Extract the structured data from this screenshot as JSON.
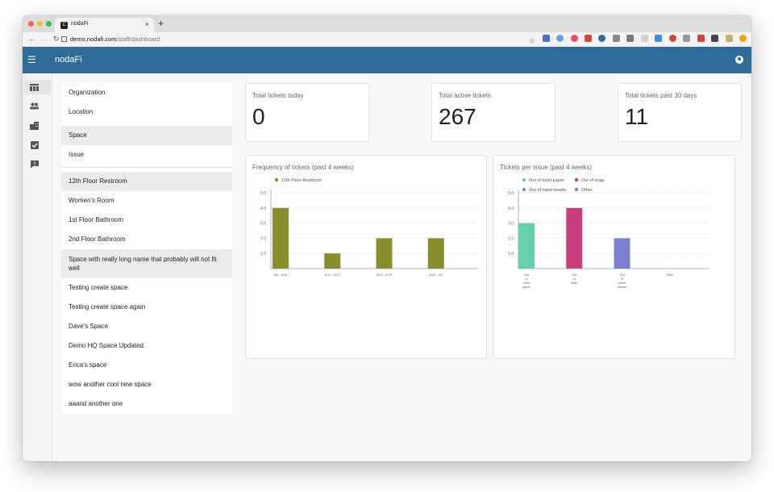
{
  "browser": {
    "tab_title": "nodaFi",
    "tab_favicon": "C",
    "url_host": "demo.nodafi.com",
    "url_path": "/staff/dashboard"
  },
  "app": {
    "brand": "nodaFi"
  },
  "filters": {
    "categories": [
      "Organization",
      "Location",
      "Space",
      "Issue"
    ],
    "selected_category": "Space",
    "spaces": [
      "12th Floor Restroom",
      "Women's Room",
      "1st Floor Bathroom",
      "2nd Floor Bathroom",
      "Space with really long name that probably will not fit well",
      "Testing create space",
      "Testing create space again",
      "Dave's Space",
      "Demo HQ Space Updated",
      "Erica's space",
      "wow another cool new space",
      "aaand another one"
    ],
    "selected_space": "12th Floor Restroom"
  },
  "stats": [
    {
      "label": "Total tickets today",
      "value": "0"
    },
    {
      "label": "Total active tickets",
      "value": "267"
    },
    {
      "label": "Total tickets past 30 days",
      "value": "11"
    }
  ],
  "icons": {
    "rail": [
      "dashboard-table-icon",
      "people-icon",
      "buildings-icon",
      "checkbox-icon",
      "feedback-icon"
    ]
  },
  "colors": {
    "appbar": "#2f6c99",
    "olive": "#8a8d2e",
    "teal": "#63d1ac",
    "magenta": "#c83f7b",
    "periwinkle": "#7b7fcf"
  },
  "chart_data": [
    {
      "type": "bar",
      "title": "Frequency of tickets (past 4 weeks)",
      "categories": [
        "8/8 - 8/14",
        "8/15 - 8/22",
        "8/23 - 8/29",
        "8/30 - 9/6"
      ],
      "series": [
        {
          "name": "12th Floor Restroom",
          "values": [
            4,
            1,
            2,
            2
          ],
          "color": "#8a8d2e"
        }
      ],
      "yticks": [
        "1.0",
        "2.0",
        "3.0",
        "4.0",
        "5.0"
      ],
      "ylim": [
        0,
        5
      ],
      "legend": "top-left"
    },
    {
      "type": "bar",
      "title": "Tickets per issue (past 4 weeks)",
      "categories": [
        "Out of toilet paper",
        "Out of soap",
        "Out of hand towels",
        "Other"
      ],
      "category_label_lines": [
        [
          "Out",
          "of",
          "toilet",
          "paper"
        ],
        [
          "Out",
          "of",
          "soap"
        ],
        [
          "Out",
          "of",
          "hand",
          "towels"
        ],
        [
          "Other"
        ]
      ],
      "values": [
        3,
        4,
        2,
        0
      ],
      "colors": [
        "#63d1ac",
        "#c83f7b",
        "#7b7fcf",
        "#7b7fcf"
      ],
      "legend_entries": [
        "Out of toilet paper",
        "Out of soap",
        "Out of hand towels",
        "Other"
      ],
      "yticks": [
        "1.0",
        "2.0",
        "3.0",
        "4.0",
        "5.0"
      ],
      "ylim": [
        0,
        5
      ],
      "legend": "top-left"
    }
  ]
}
